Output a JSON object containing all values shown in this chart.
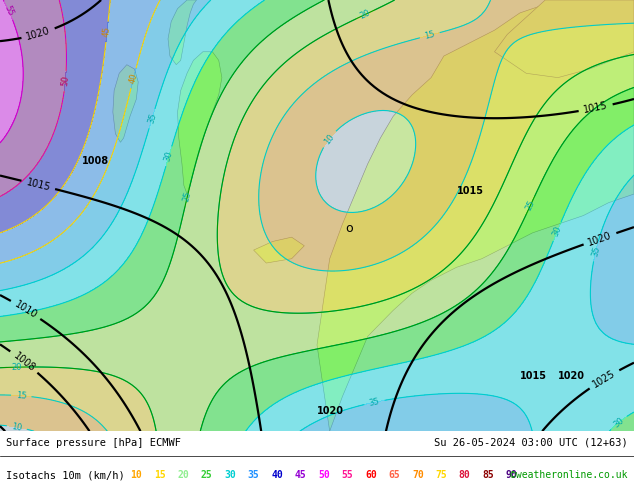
{
  "title_left": "Surface pressure [hPa] ECMWF",
  "title_right": "Su 26-05-2024 03:00 UTC (12+63)",
  "legend_label": "Isotachs 10m (km/h)",
  "copyright": "©weatheronline.co.uk",
  "isotach_levels": [
    10,
    15,
    20,
    25,
    30,
    35,
    40,
    45,
    50,
    55,
    60,
    65,
    70,
    75,
    80,
    85,
    90
  ],
  "legend_colors": [
    "#ffa500",
    "#ffd700",
    "#90ee90",
    "#32cd32",
    "#00ced1",
    "#1e90ff",
    "#0000cd",
    "#9400d3",
    "#ff00ff",
    "#ff1493",
    "#ff0000",
    "#ff6347",
    "#ff8c00",
    "#ffd700",
    "#dc143c",
    "#8b0000",
    "#4b0082"
  ],
  "bg_color": "#d0d8e0",
  "land_color": "#c8e6a0",
  "pressure_color": "#000000",
  "figsize": [
    6.34,
    4.9
  ],
  "dpi": 100
}
